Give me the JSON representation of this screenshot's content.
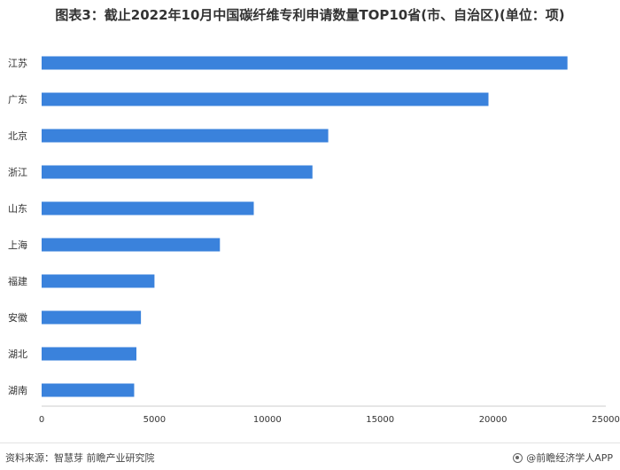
{
  "title": "图表3：截止2022年10月中国碳纤维专利申请数量TOP10省(市、自治区)(单位：项)",
  "source": "资料来源：智慧芽 前瞻产业研究院",
  "brand": "@前瞻经济学人APP",
  "colors": {
    "bar": "#3a82dc",
    "axis": "#cccccc"
  },
  "icons": {
    "brand": "logo-circle-icon"
  },
  "chart_data": {
    "type": "bar",
    "orientation": "horizontal",
    "categories": [
      "江苏",
      "广东",
      "北京",
      "浙江",
      "山东",
      "上海",
      "福建",
      "安徽",
      "湖北",
      "湖南"
    ],
    "values": [
      23300,
      19800,
      12700,
      12000,
      9400,
      7900,
      5000,
      4400,
      4200,
      4100
    ],
    "xlim": [
      0,
      25000
    ],
    "xticks": [
      0,
      5000,
      10000,
      15000,
      20000,
      25000
    ],
    "grid": false,
    "legend": "none"
  }
}
